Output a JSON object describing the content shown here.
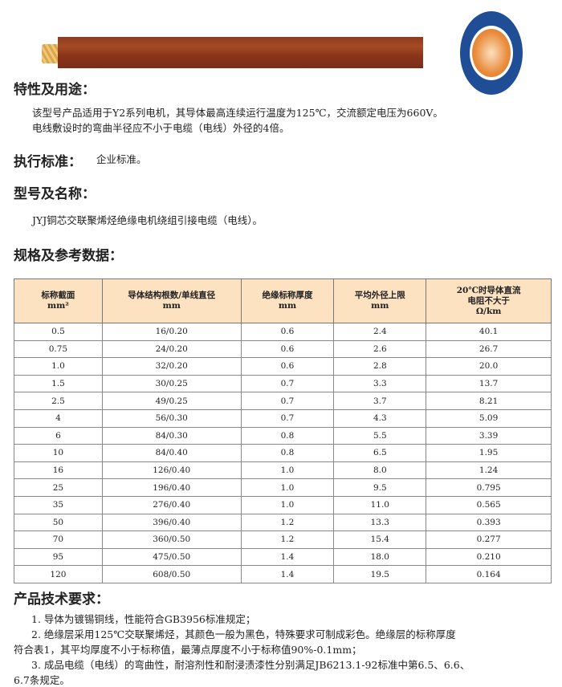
{
  "sections": {
    "usage": {
      "heading": "特性及用途：",
      "lines": [
        "该型号产品适用于Y2系列电机，其导体最高连续运行温度为125℃，交流额定电压为660V。",
        "电线敷设时的弯曲半径应不小于电缆（电线）外径的4倍。"
      ]
    },
    "standard": {
      "heading": "执行标准：",
      "text": "企业标准。"
    },
    "model": {
      "heading": "型号及名称：",
      "text": "JYJ铜芯交联聚烯烃绝缘电机绕组引接电缆（电线）。"
    },
    "spec": {
      "heading": "规格及参考数据："
    },
    "requirements": {
      "heading": "产品技术要求：",
      "lines": [
        "1. 导体为镀锡铜线，性能符合GB3956标准规定；",
        "2. 绝缘层采用125℃交联聚烯烃，其颜色一般为黑色，特殊要求可制成彩色。绝缘层的标称厚度",
        "符合表1，其平均厚度不小于标称值，最薄点厚度不小于标称值90%-0.1mm；",
        "3. 成品电缆（电线）的弯曲性，耐溶剂性和耐浸渍漆性分别满足JB6213.1-92标准中第6.5、6.6、",
        "6.7条规定。"
      ]
    }
  },
  "table": {
    "headers": [
      [
        "标称截面",
        "mm²"
      ],
      [
        "导体结构根数/单线直径",
        "mm"
      ],
      [
        "绝缘标称厚度",
        "mm"
      ],
      [
        "平均外径上限",
        "mm"
      ],
      [
        "20℃时导体直流",
        "电阻不大于",
        "Ω/km"
      ]
    ],
    "rows": [
      [
        "0.5",
        "16/0.20",
        "0.6",
        "2.4",
        "40.1"
      ],
      [
        "0.75",
        "24/0.20",
        "0.6",
        "2.6",
        "26.7"
      ],
      [
        "1.0",
        "32/0.20",
        "0.6",
        "2.8",
        "20.0"
      ],
      [
        "1.5",
        "30/0.25",
        "0.7",
        "3.3",
        "13.7"
      ],
      [
        "2.5",
        "49/0.25",
        "0.7",
        "3.7",
        "8.21"
      ],
      [
        "4",
        "56/0.30",
        "0.7",
        "4.3",
        "5.09"
      ],
      [
        "6",
        "84/0.30",
        "0.8",
        "5.5",
        "3.39"
      ],
      [
        "10",
        "84/0.40",
        "0.8",
        "6.5",
        "1.95"
      ],
      [
        "16",
        "126/0.40",
        "1.0",
        "8.0",
        "1.24"
      ],
      [
        "25",
        "196/0.40",
        "1.0",
        "9.5",
        "0.795"
      ],
      [
        "35",
        "276/0.40",
        "1.0",
        "11.0",
        "0.565"
      ],
      [
        "50",
        "396/0.40",
        "1.2",
        "13.3",
        "0.393"
      ],
      [
        "70",
        "360/0.50",
        "1.2",
        "15.4",
        "0.277"
      ],
      [
        "95",
        "475/0.50",
        "1.4",
        "18.0",
        "0.210"
      ],
      [
        "120",
        "608/0.50",
        "1.4",
        "19.5",
        "0.164"
      ]
    ]
  }
}
